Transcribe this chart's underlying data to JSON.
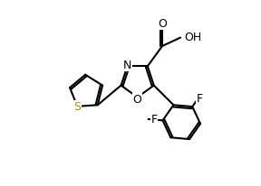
{
  "background_color": "#ffffff",
  "line_color": "#000000",
  "bond_width": 1.5,
  "S_color": "#b8860b",
  "figsize": [
    2.88,
    2.07
  ],
  "dpi": 100,
  "xlim": [
    -4.5,
    4.0
  ],
  "ylim": [
    -3.5,
    3.2
  ]
}
